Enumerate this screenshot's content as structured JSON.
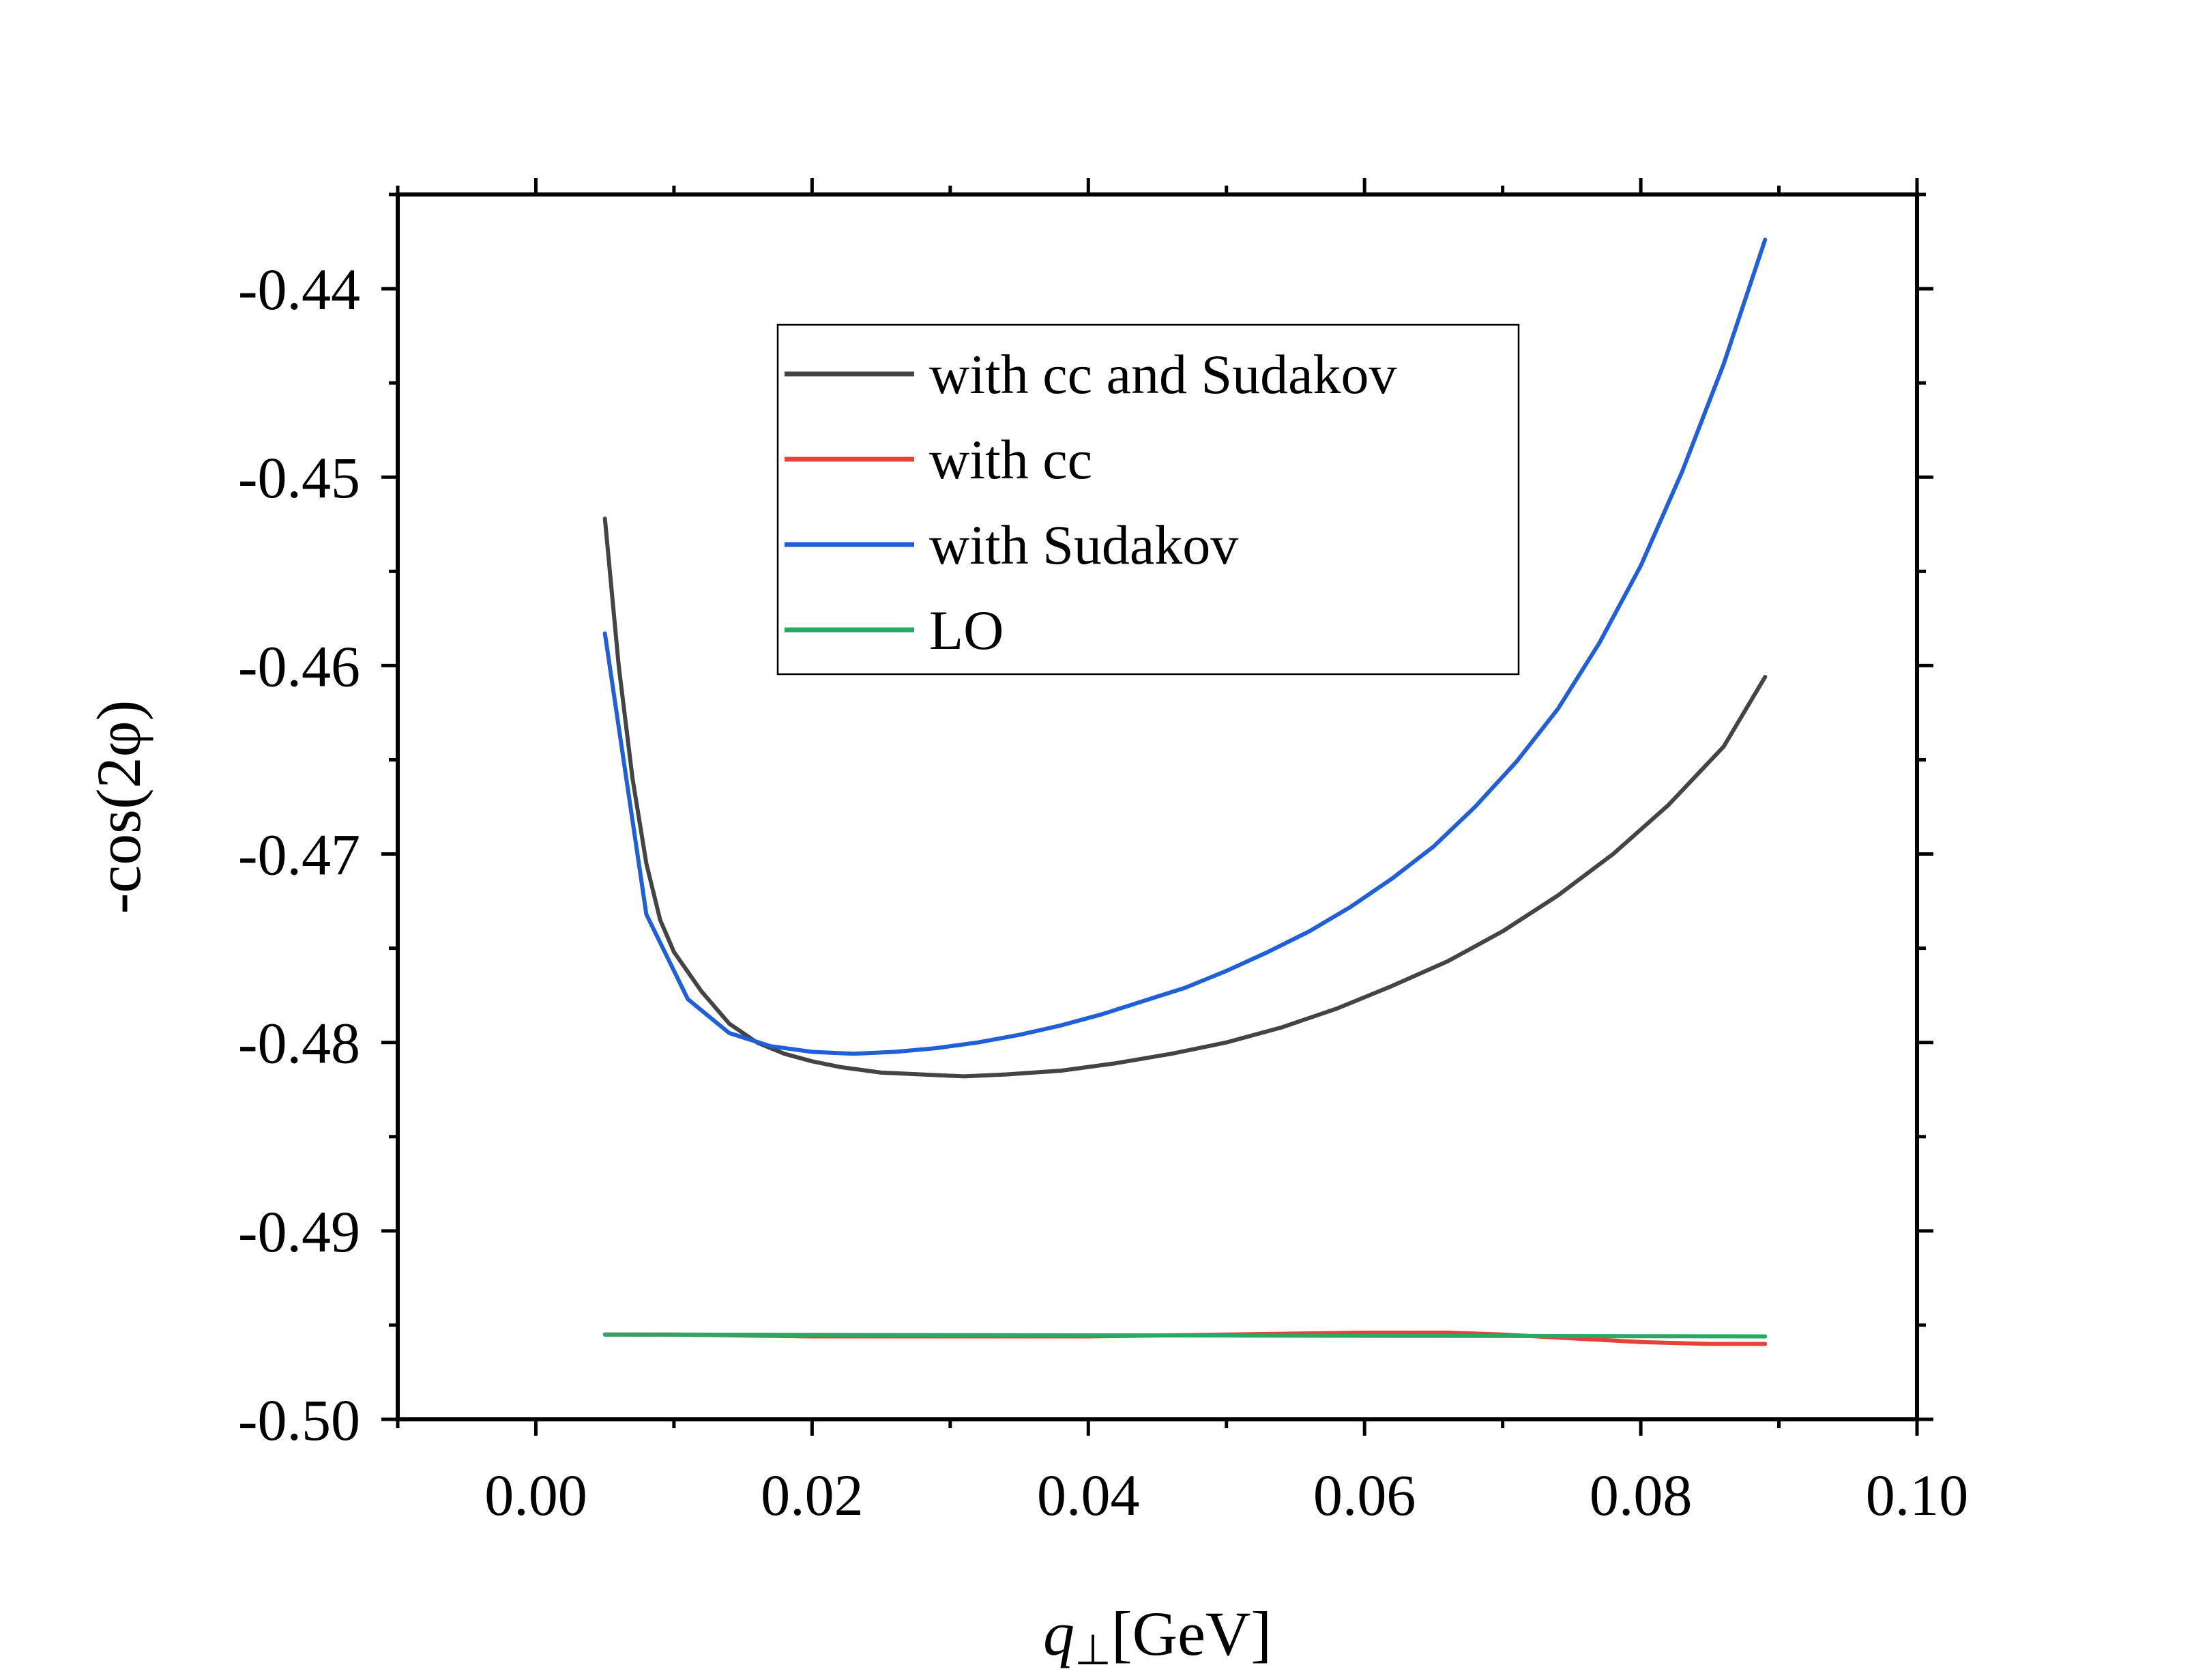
{
  "chart_data": {
    "type": "line",
    "title": "",
    "xlabel": {
      "var": "q",
      "sub": "⊥",
      "unit": "[GeV]"
    },
    "ylabel": "-cos(2φ)",
    "xlim": [
      -0.01,
      0.1
    ],
    "ylim": [
      -0.5,
      -0.435
    ],
    "xticks": [
      0.0,
      0.02,
      0.04,
      0.06,
      0.08,
      0.1
    ],
    "xtick_labels": [
      "0.00",
      "0.02",
      "0.04",
      "0.06",
      "0.08",
      "0.10"
    ],
    "yticks": [
      -0.5,
      -0.49,
      -0.48,
      -0.47,
      -0.46,
      -0.45,
      -0.44
    ],
    "ytick_labels": [
      "-0.50",
      "-0.49",
      "-0.48",
      "-0.47",
      "-0.46",
      "-0.45",
      "-0.44"
    ],
    "x_minor_step": 0.01,
    "y_minor_step": 0.005,
    "grid": false,
    "legend_position": "upper-center",
    "series": [
      {
        "name": "with cc and Sudakov",
        "color": "#444444",
        "x": [
          0.005,
          0.006,
          0.007,
          0.008,
          0.009,
          0.01,
          0.012,
          0.014,
          0.016,
          0.018,
          0.02,
          0.022,
          0.025,
          0.028,
          0.031,
          0.034,
          0.038,
          0.042,
          0.046,
          0.05,
          0.054,
          0.058,
          0.062,
          0.066,
          0.07,
          0.074,
          0.078,
          0.082,
          0.086,
          0.089
        ],
        "values": [
          -0.4522,
          -0.46,
          -0.466,
          -0.4705,
          -0.4735,
          -0.4752,
          -0.4773,
          -0.479,
          -0.48,
          -0.4806,
          -0.481,
          -0.4813,
          -0.4816,
          -0.4817,
          -0.4818,
          -0.4817,
          -0.4815,
          -0.4811,
          -0.4806,
          -0.48,
          -0.4792,
          -0.4782,
          -0.477,
          -0.4757,
          -0.4741,
          -0.4722,
          -0.47,
          -0.4674,
          -0.4643,
          -0.4606
        ]
      },
      {
        "name": "with cc",
        "color": "#e8413c",
        "x": [
          0.005,
          0.01,
          0.02,
          0.03,
          0.04,
          0.05,
          0.06,
          0.066,
          0.07,
          0.075,
          0.08,
          0.085,
          0.089
        ],
        "values": [
          -0.4955,
          -0.4955,
          -0.4956,
          -0.4956,
          -0.4956,
          -0.4955,
          -0.4954,
          -0.4954,
          -0.4955,
          -0.4957,
          -0.4959,
          -0.496,
          -0.496
        ]
      },
      {
        "name": "with Sudakov",
        "color": "#1f5fd8",
        "x": [
          0.005,
          0.008,
          0.011,
          0.014,
          0.017,
          0.02,
          0.023,
          0.026,
          0.029,
          0.032,
          0.035,
          0.038,
          0.041,
          0.044,
          0.047,
          0.05,
          0.053,
          0.056,
          0.059,
          0.062,
          0.065,
          0.068,
          0.071,
          0.074,
          0.077,
          0.08,
          0.083,
          0.086,
          0.089
        ],
        "values": [
          -0.4583,
          -0.4732,
          -0.4777,
          -0.4795,
          -0.4802,
          -0.4805,
          -0.4806,
          -0.4805,
          -0.4803,
          -0.48,
          -0.4796,
          -0.4791,
          -0.4785,
          -0.4778,
          -0.4771,
          -0.4762,
          -0.4752,
          -0.4741,
          -0.4728,
          -0.4713,
          -0.4696,
          -0.4675,
          -0.4651,
          -0.4623,
          -0.4588,
          -0.4547,
          -0.4497,
          -0.444,
          -0.4374
        ]
      },
      {
        "name": "LO",
        "color": "#2aa866",
        "x": [
          0.005,
          0.089
        ],
        "values": [
          -0.4955,
          -0.4956
        ]
      }
    ]
  }
}
